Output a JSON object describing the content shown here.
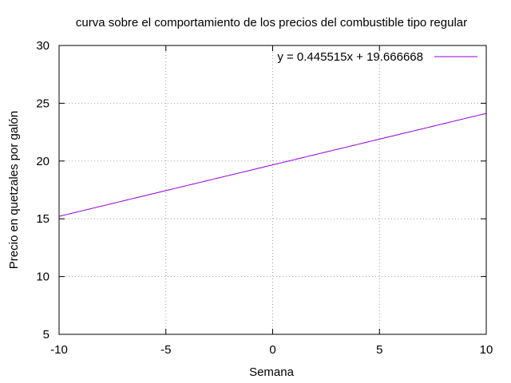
{
  "chart_data": {
    "type": "line",
    "title": "curva sobre el comportamiento de los precios del combustible tipo regular",
    "xlabel": "Semana",
    "ylabel": "Precio en quetzales por galón",
    "xlim": [
      -10,
      10
    ],
    "ylim": [
      5,
      30
    ],
    "xticks": [
      "-10",
      "-5",
      "0",
      "5",
      "10"
    ],
    "yticks": [
      "5",
      "10",
      "15",
      "20",
      "25",
      "30"
    ],
    "grid": true,
    "legend_position": "top-right",
    "series": [
      {
        "name": "y = 0.445515x + 19.666668",
        "color": "#9400d3",
        "slope": 0.445515,
        "intercept": 19.666668,
        "x": [
          -10,
          -5,
          0,
          5,
          10
        ],
        "y": [
          15.211518,
          17.439093,
          19.666668,
          21.894243,
          24.121818
        ]
      }
    ]
  }
}
